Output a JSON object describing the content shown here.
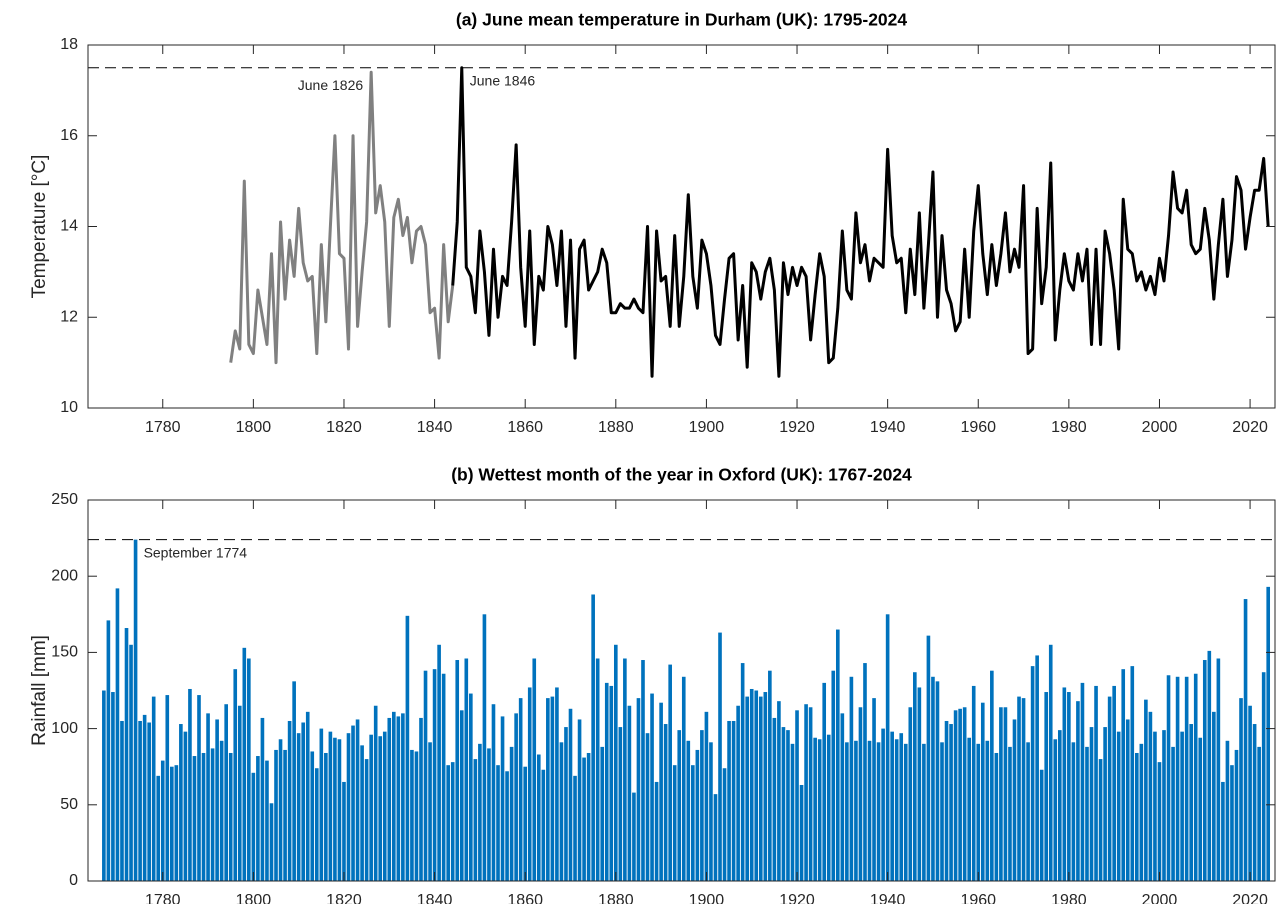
{
  "chart_data": [
    {
      "type": "line",
      "title": "(a) June mean temperature in Durham (UK): 1795-2024",
      "ylabel": "Temperature [°C]",
      "xlim": [
        1763.5,
        2025.5
      ],
      "xticks": [
        1780,
        1800,
        1820,
        1840,
        1860,
        1880,
        1900,
        1920,
        1940,
        1960,
        1980,
        2000,
        2020
      ],
      "ylim": [
        10,
        18
      ],
      "yticks": [
        10,
        12,
        14,
        16,
        18
      ],
      "hline": 17.5,
      "series": [
        {
          "color": "#808080",
          "x": [
            1795,
            1796,
            1797,
            1798,
            1799,
            1800,
            1801,
            1802,
            1803,
            1804,
            1805,
            1806,
            1807,
            1808,
            1809,
            1810,
            1811,
            1812,
            1813,
            1814,
            1815,
            1816,
            1817,
            1818,
            1819,
            1820,
            1821,
            1822,
            1823,
            1824,
            1825,
            1826,
            1827,
            1828,
            1829,
            1830,
            1831,
            1832,
            1833,
            1834,
            1835,
            1836,
            1837,
            1838,
            1839,
            1840,
            1841,
            1842,
            1843,
            1844
          ],
          "values": [
            11.0,
            11.7,
            11.3,
            15.0,
            11.4,
            11.2,
            12.6,
            12.0,
            11.4,
            13.4,
            11.0,
            14.1,
            12.4,
            13.7,
            12.9,
            14.4,
            13.2,
            12.8,
            12.9,
            11.2,
            13.6,
            11.9,
            14.0,
            16.0,
            13.4,
            13.3,
            11.3,
            16.0,
            11.8,
            13.0,
            14.1,
            17.4,
            14.3,
            14.9,
            14.1,
            11.8,
            14.2,
            14.6,
            13.8,
            14.2,
            13.2,
            13.9,
            14.0,
            13.6,
            12.1,
            12.2,
            11.1,
            13.6,
            11.9,
            12.7
          ]
        },
        {
          "color": "#000000",
          "x": [
            1844,
            1845,
            1846,
            1847,
            1848,
            1849,
            1850,
            1851,
            1852,
            1853,
            1854,
            1855,
            1856,
            1857,
            1858,
            1859,
            1860,
            1861,
            1862,
            1863,
            1864,
            1865,
            1866,
            1867,
            1868,
            1869,
            1870,
            1871,
            1872,
            1873,
            1874,
            1875,
            1876,
            1877,
            1878,
            1879,
            1880,
            1881,
            1882,
            1883,
            1884,
            1885,
            1886,
            1887,
            1888,
            1889,
            1890,
            1891,
            1892,
            1893,
            1894,
            1895,
            1896,
            1897,
            1898,
            1899,
            1900,
            1901,
            1902,
            1903,
            1904,
            1905,
            1906,
            1907,
            1908,
            1909,
            1910,
            1911,
            1912,
            1913,
            1914,
            1915,
            1916,
            1917,
            1918,
            1919,
            1920,
            1921,
            1922,
            1923,
            1924,
            1925,
            1926,
            1927,
            1928,
            1929,
            1930,
            1931,
            1932,
            1933,
            1934,
            1935,
            1936,
            1937,
            1938,
            1939,
            1940,
            1941,
            1942,
            1943,
            1944,
            1945,
            1946,
            1947,
            1948,
            1949,
            1950,
            1951,
            1952,
            1953,
            1954,
            1955,
            1956,
            1957,
            1958,
            1959,
            1960,
            1961,
            1962,
            1963,
            1964,
            1965,
            1966,
            1967,
            1968,
            1969,
            1970,
            1971,
            1972,
            1973,
            1974,
            1975,
            1976,
            1977,
            1978,
            1979,
            1980,
            1981,
            1982,
            1983,
            1984,
            1985,
            1986,
            1987,
            1988,
            1989,
            1990,
            1991,
            1992,
            1993,
            1994,
            1995,
            1996,
            1997,
            1998,
            1999,
            2000,
            2001,
            2002,
            2003,
            2004,
            2005,
            2006,
            2007,
            2008,
            2009,
            2010,
            2011,
            2012,
            2013,
            2014,
            2015,
            2016,
            2017,
            2018,
            2019,
            2020,
            2021,
            2022,
            2023,
            2024
          ],
          "values": [
            12.7,
            14.1,
            17.5,
            13.1,
            12.9,
            12.1,
            13.9,
            13.0,
            11.6,
            13.5,
            12.0,
            12.9,
            12.7,
            14.1,
            15.8,
            13.1,
            11.8,
            13.9,
            11.4,
            12.9,
            12.6,
            14.0,
            13.6,
            12.7,
            13.9,
            11.8,
            13.7,
            11.1,
            13.5,
            13.7,
            12.6,
            12.8,
            13.0,
            13.5,
            13.2,
            12.1,
            12.1,
            12.3,
            12.2,
            12.2,
            12.4,
            12.2,
            12.1,
            14.0,
            10.7,
            13.9,
            12.8,
            12.9,
            11.8,
            13.8,
            11.8,
            12.9,
            14.7,
            12.9,
            12.2,
            13.7,
            13.4,
            12.7,
            11.6,
            11.4,
            12.4,
            13.3,
            13.4,
            11.5,
            12.7,
            10.9,
            13.2,
            13.0,
            12.4,
            13.0,
            13.3,
            12.6,
            10.7,
            13.2,
            12.5,
            13.1,
            12.7,
            13.1,
            12.9,
            11.5,
            12.5,
            13.4,
            12.9,
            11.0,
            11.1,
            12.2,
            13.9,
            12.6,
            12.4,
            14.3,
            13.2,
            13.6,
            12.8,
            13.3,
            13.2,
            13.1,
            15.7,
            13.8,
            13.2,
            13.3,
            12.1,
            13.5,
            12.5,
            14.3,
            12.2,
            13.6,
            15.2,
            12.0,
            13.8,
            12.6,
            12.3,
            11.7,
            11.9,
            13.5,
            12.0,
            13.9,
            14.9,
            13.4,
            12.5,
            13.6,
            12.7,
            13.4,
            14.3,
            13.0,
            13.5,
            13.1,
            14.9,
            11.2,
            11.3,
            14.4,
            12.3,
            13.1,
            15.4,
            11.5,
            12.6,
            13.4,
            12.8,
            12.6,
            13.4,
            12.8,
            13.5,
            11.4,
            13.5,
            11.4,
            13.9,
            13.4,
            12.6,
            11.3,
            14.6,
            13.5,
            13.4,
            12.8,
            13.0,
            12.6,
            12.9,
            12.5,
            13.3,
            12.8,
            13.8,
            15.2,
            14.4,
            14.3,
            14.8,
            13.6,
            13.4,
            13.5,
            14.4,
            13.7,
            12.4,
            13.6,
            14.6,
            12.9,
            13.7,
            15.1,
            14.8,
            13.5,
            14.2,
            14.8,
            14.8,
            15.5,
            14.0
          ]
        }
      ],
      "annotations": [
        {
          "text": "June 1826",
          "x": 1826,
          "color": "#808080"
        },
        {
          "text": "June 1846",
          "x": 1846,
          "color": "#000000"
        }
      ]
    },
    {
      "type": "bar",
      "title": "(b) Wettest month of the year in Oxford (UK): 1767-2024",
      "ylabel": "Rainfall [mm]",
      "xlim": [
        1763.5,
        2025.5
      ],
      "xticks": [
        1780,
        1800,
        1820,
        1840,
        1860,
        1880,
        1900,
        1920,
        1940,
        1960,
        1980,
        2000,
        2020
      ],
      "ylim": [
        0,
        250
      ],
      "yticks": [
        0,
        50,
        100,
        150,
        200,
        250
      ],
      "hline": 224,
      "color": "#0072BD",
      "x": [
        1767,
        1768,
        1769,
        1770,
        1771,
        1772,
        1773,
        1774,
        1775,
        1776,
        1777,
        1778,
        1779,
        1780,
        1781,
        1782,
        1783,
        1784,
        1785,
        1786,
        1787,
        1788,
        1789,
        1790,
        1791,
        1792,
        1793,
        1794,
        1795,
        1796,
        1797,
        1798,
        1799,
        1800,
        1801,
        1802,
        1803,
        1804,
        1805,
        1806,
        1807,
        1808,
        1809,
        1810,
        1811,
        1812,
        1813,
        1814,
        1815,
        1816,
        1817,
        1818,
        1819,
        1820,
        1821,
        1822,
        1823,
        1824,
        1825,
        1826,
        1827,
        1828,
        1829,
        1830,
        1831,
        1832,
        1833,
        1834,
        1835,
        1836,
        1837,
        1838,
        1839,
        1840,
        1841,
        1842,
        1843,
        1844,
        1845,
        1846,
        1847,
        1848,
        1849,
        1850,
        1851,
        1852,
        1853,
        1854,
        1855,
        1856,
        1857,
        1858,
        1859,
        1860,
        1861,
        1862,
        1863,
        1864,
        1865,
        1866,
        1867,
        1868,
        1869,
        1870,
        1871,
        1872,
        1873,
        1874,
        1875,
        1876,
        1877,
        1878,
        1879,
        1880,
        1881,
        1882,
        1883,
        1884,
        1885,
        1886,
        1887,
        1888,
        1889,
        1890,
        1891,
        1892,
        1893,
        1894,
        1895,
        1896,
        1897,
        1898,
        1899,
        1900,
        1901,
        1902,
        1903,
        1904,
        1905,
        1906,
        1907,
        1908,
        1909,
        1910,
        1911,
        1912,
        1913,
        1914,
        1915,
        1916,
        1917,
        1918,
        1919,
        1920,
        1921,
        1922,
        1923,
        1924,
        1925,
        1926,
        1927,
        1928,
        1929,
        1930,
        1931,
        1932,
        1933,
        1934,
        1935,
        1936,
        1937,
        1938,
        1939,
        1940,
        1941,
        1942,
        1943,
        1944,
        1945,
        1946,
        1947,
        1948,
        1949,
        1950,
        1951,
        1952,
        1953,
        1954,
        1955,
        1956,
        1957,
        1958,
        1959,
        1960,
        1961,
        1962,
        1963,
        1964,
        1965,
        1966,
        1967,
        1968,
        1969,
        1970,
        1971,
        1972,
        1973,
        1974,
        1975,
        1976,
        1977,
        1978,
        1979,
        1980,
        1981,
        1982,
        1983,
        1984,
        1985,
        1986,
        1987,
        1988,
        1989,
        1990,
        1991,
        1992,
        1993,
        1994,
        1995,
        1996,
        1997,
        1998,
        1999,
        2000,
        2001,
        2002,
        2003,
        2004,
        2005,
        2006,
        2007,
        2008,
        2009,
        2010,
        2011,
        2012,
        2013,
        2014,
        2015,
        2016,
        2017,
        2018,
        2019,
        2020,
        2021,
        2022,
        2023,
        2024
      ],
      "values": [
        125,
        171,
        124,
        192,
        105,
        166,
        155,
        224,
        105,
        109,
        104,
        121,
        69,
        79,
        122,
        75,
        76,
        103,
        98,
        126,
        82,
        122,
        84,
        110,
        87,
        106,
        92,
        116,
        84,
        139,
        115,
        153,
        146,
        71,
        82,
        107,
        79,
        51,
        86,
        93,
        86,
        105,
        131,
        97,
        104,
        111,
        85,
        74,
        100,
        84,
        98,
        94,
        93,
        65,
        97,
        102,
        106,
        89,
        80,
        96,
        115,
        95,
        98,
        107,
        111,
        108,
        110,
        174,
        86,
        85,
        107,
        138,
        91,
        139,
        155,
        136,
        76,
        78,
        145,
        112,
        146,
        123,
        80,
        90,
        175,
        87,
        116,
        76,
        108,
        72,
        88,
        110,
        120,
        75,
        127,
        146,
        83,
        73,
        120,
        121,
        127,
        91,
        101,
        113,
        69,
        106,
        81,
        84,
        188,
        146,
        88,
        130,
        128,
        155,
        101,
        146,
        115,
        58,
        120,
        145,
        97,
        123,
        65,
        117,
        103,
        142,
        76,
        99,
        134,
        92,
        76,
        86,
        99,
        111,
        91,
        57,
        163,
        74,
        105,
        105,
        115,
        143,
        121,
        126,
        125,
        121,
        124,
        138,
        107,
        118,
        101,
        99,
        90,
        112,
        63,
        116,
        114,
        94,
        93,
        130,
        96,
        138,
        165,
        110,
        91,
        134,
        92,
        114,
        143,
        92,
        120,
        91,
        100,
        175,
        98,
        93,
        97,
        90,
        114,
        137,
        127,
        90,
        161,
        134,
        131,
        91,
        105,
        103,
        112,
        113,
        114,
        94,
        128,
        90,
        117,
        92,
        138,
        84,
        114,
        114,
        88,
        106,
        121,
        120,
        91,
        141,
        148,
        73,
        124,
        155,
        93,
        99,
        127,
        124,
        91,
        118,
        130,
        88,
        101,
        128,
        80,
        101,
        121,
        128,
        98,
        139,
        106,
        141,
        84,
        90,
        119,
        111,
        98,
        78,
        99,
        135,
        88,
        134,
        98,
        134,
        103,
        136,
        94,
        145,
        151,
        111,
        146,
        65,
        92,
        76,
        86,
        120,
        185,
        115,
        103,
        88,
        137,
        193
      ],
      "annotations": [
        {
          "text": "September 1774",
          "x": 1774,
          "color": "#0072BD"
        }
      ]
    }
  ]
}
